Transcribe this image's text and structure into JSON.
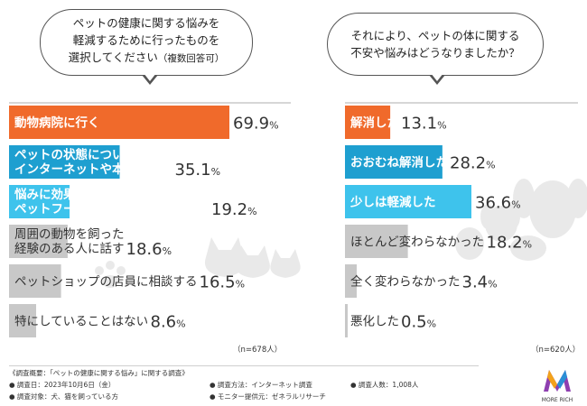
{
  "question1": {
    "lines": [
      "ペットの健康に関する悩みを",
      "軽減するために行ったものを"
    ],
    "line3": "選択してください",
    "line3_note": "（複数回答可）"
  },
  "question2": {
    "lines": [
      "それにより、ペットの体に関する",
      "不安や悩みはどうなりましたか？"
    ]
  },
  "chart_data": [
    {
      "type": "bar",
      "orientation": "horizontal",
      "title": "ペットの健康に関する悩みを軽減するために行ったもの",
      "categories": [
        [
          "動物病院に行く"
        ],
        [
          "ペットの状態について",
          "インターネットや本で調べる"
        ],
        [
          "悩みに効果がありそうな",
          "ペットフードやサプリを取り入れる"
        ],
        [
          "周囲の動物を飼った",
          "経験のある人に話す"
        ],
        [
          "ペットショップの店員に相談する"
        ],
        [
          "特にしていることはない"
        ]
      ],
      "values": [
        69.9,
        35.1,
        19.2,
        18.6,
        16.5,
        8.6
      ],
      "labels": [
        "69.9",
        "35.1",
        "19.2",
        "18.6",
        "16.5",
        "8.6"
      ],
      "unit": "%",
      "colors": [
        "#F06A2B",
        "#1E9FD0",
        "#3EC3EC",
        "#C8C8C8",
        "#C8C8C8",
        "#C8C8C8"
      ],
      "n_label": "（n=678人）"
    },
    {
      "type": "bar",
      "orientation": "horizontal",
      "title": "ペットの体に関する不安や悩みはどうなったか",
      "categories": [
        "解消した",
        "おおむね解消した",
        "少しは軽減した",
        "ほとんど変わらなかった",
        "全く変わらなかった",
        "悪化した"
      ],
      "values": [
        13.1,
        28.2,
        36.6,
        18.2,
        3.4,
        0.5
      ],
      "labels": [
        "13.1",
        "28.2",
        "36.6",
        "18.2",
        "3.4",
        "0.5"
      ],
      "unit": "%",
      "colors": [
        "#F06A2B",
        "#1E9FD0",
        "#3EC3EC",
        "#C8C8C8",
        "#C8C8C8",
        "#C8C8C8"
      ],
      "n_label": "（n=620人）"
    }
  ],
  "footer": {
    "col1": [
      "《調査概要：「ペットの健康に関する悩み」に関する調査》",
      "● 調査日：2023年10月6日（金）",
      "● 調査対象：犬、猫を飼っている方"
    ],
    "col2": [
      "● 調査方法：インターネット調査",
      "● モニター提供元：ゼネラルリサーチ"
    ],
    "col3": [
      "● 調査人数：1,008人"
    ],
    "logo_text": "MORE RICH"
  },
  "colors": {
    "orange": "#F06A2B",
    "blue": "#1E9FD0",
    "lightblue": "#3EC3EC",
    "gray": "#C8C8C8"
  }
}
